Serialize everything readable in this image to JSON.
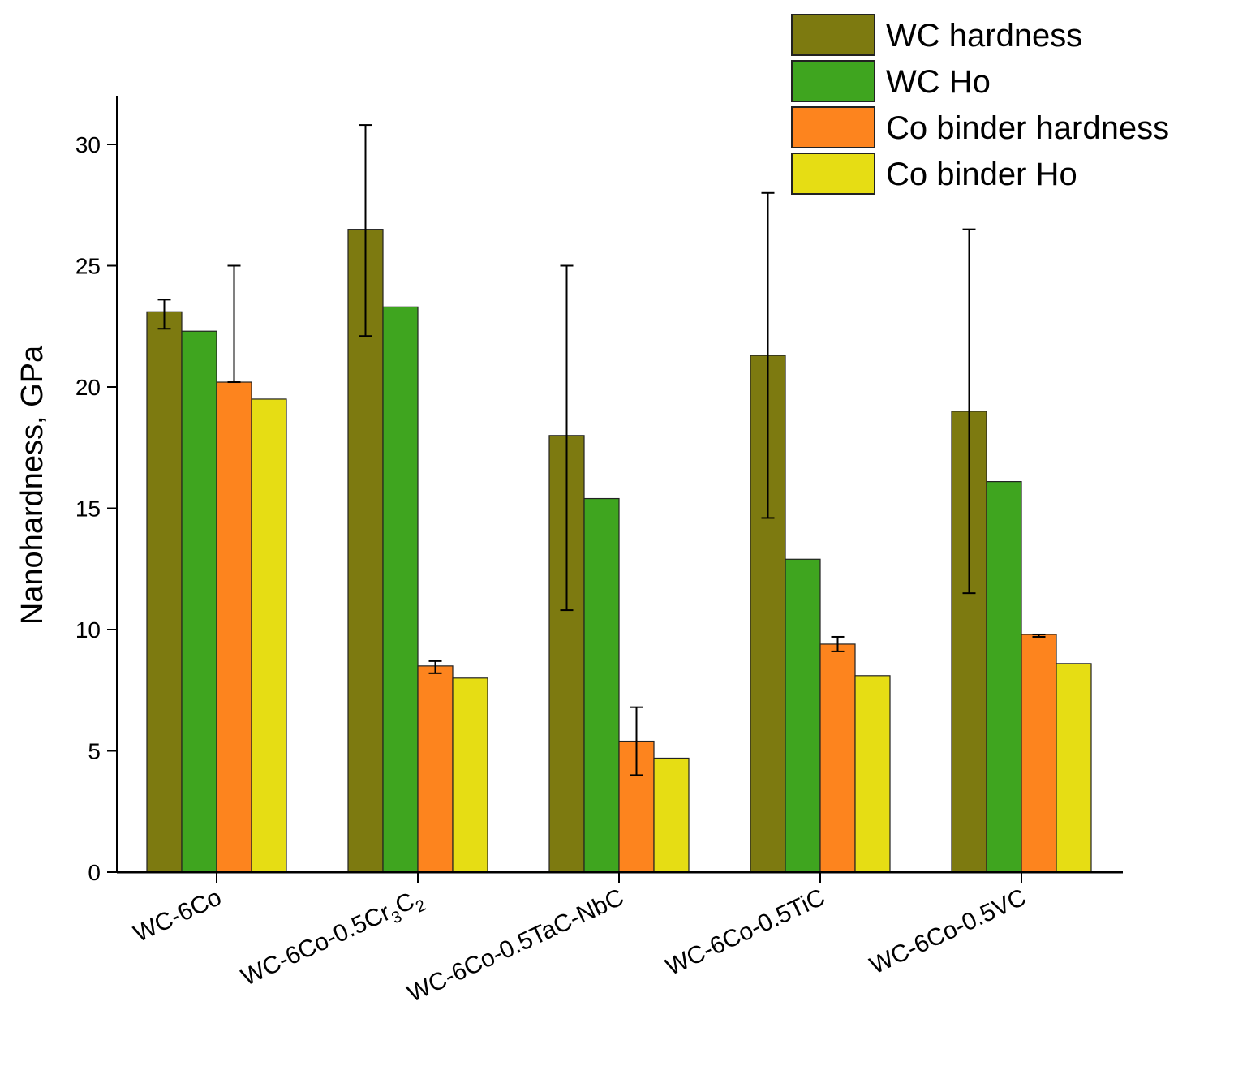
{
  "chart_data": {
    "type": "bar",
    "title": "",
    "xlabel": "",
    "ylabel": "Nanohardness, GPa",
    "ylim": [
      0,
      32
    ],
    "yticks": [
      0,
      5,
      10,
      15,
      20,
      25,
      30
    ],
    "grid": false,
    "legend_position": "top-right",
    "categories": [
      {
        "label": "WC-6Co",
        "pre": "WC-6Co",
        "sub": "",
        "mid": "",
        "sub2": ""
      },
      {
        "label": "WC-6Co-0.5Cr3C2",
        "pre": "WC-6Co-0.5Cr",
        "sub": "3",
        "mid": "C",
        "sub2": "2"
      },
      {
        "label": "WC-6Co-0.5TaC-NbC",
        "pre": "WC-6Co-0.5TaC-NbC",
        "sub": "",
        "mid": "",
        "sub2": ""
      },
      {
        "label": "WC-6Co-0.5TiC",
        "pre": "WC-6Co-0.5TiC",
        "sub": "",
        "mid": "",
        "sub2": ""
      },
      {
        "label": "WC-6Co-0.5VC",
        "pre": "WC-6Co-0.5VC",
        "sub": "",
        "mid": "",
        "sub2": ""
      }
    ],
    "series": [
      {
        "name": "WC hardness",
        "color": "#7d7a10",
        "values": [
          23.1,
          26.5,
          18.0,
          21.3,
          19.0
        ],
        "err_low": [
          22.4,
          22.1,
          10.8,
          14.6,
          11.5
        ],
        "err_high": [
          23.6,
          30.8,
          25.0,
          28.0,
          26.5
        ]
      },
      {
        "name": "WC Ho",
        "color": "#3fa51f",
        "values": [
          22.3,
          23.3,
          15.4,
          12.9,
          16.1
        ],
        "err_low": null,
        "err_high": null
      },
      {
        "name": "Co binder hardness",
        "color": "#fd841e",
        "values": [
          20.2,
          8.5,
          5.4,
          9.4,
          9.8
        ],
        "err_low": [
          20.2,
          8.2,
          4.0,
          9.1,
          9.7
        ],
        "err_high": [
          25.0,
          8.7,
          6.8,
          9.7,
          9.8
        ]
      },
      {
        "name": "Co binder Ho",
        "color": "#e6dd14",
        "values": [
          19.5,
          8.0,
          4.7,
          8.1,
          8.6
        ],
        "err_low": null,
        "err_high": null
      }
    ]
  }
}
